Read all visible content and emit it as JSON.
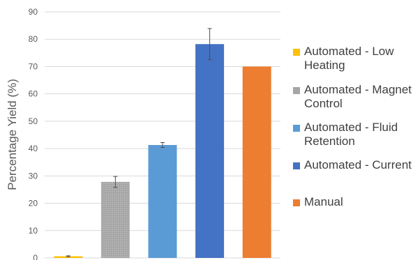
{
  "chart_data": {
    "type": "bar",
    "ylabel": "Percentage Yield (%)",
    "ylim": [
      0,
      90
    ],
    "yticks": [
      0,
      10,
      20,
      30,
      40,
      50,
      60,
      70,
      80,
      90
    ],
    "grid": true,
    "legend_position": "right",
    "bars": [
      {
        "name": "Automated - Low Heating",
        "value": 0.6,
        "error": 0.2,
        "color": "#FFC000",
        "pattern": "solid"
      },
      {
        "name": "Automated - Magnet Control",
        "value": 27.8,
        "error": 2.0,
        "color": "#A5A5A5",
        "pattern": "dotted"
      },
      {
        "name": "Automated - Fluid Retention",
        "value": 41.3,
        "error": 0.9,
        "color": "#5B9BD5",
        "pattern": "solid"
      },
      {
        "name": "Automated - Current",
        "value": 78.2,
        "error": 5.7,
        "color": "#4472C4",
        "pattern": "solid"
      },
      {
        "name": "Manual",
        "value": 70.0,
        "error": 0,
        "color": "#ED7D31",
        "pattern": "solid"
      }
    ]
  }
}
